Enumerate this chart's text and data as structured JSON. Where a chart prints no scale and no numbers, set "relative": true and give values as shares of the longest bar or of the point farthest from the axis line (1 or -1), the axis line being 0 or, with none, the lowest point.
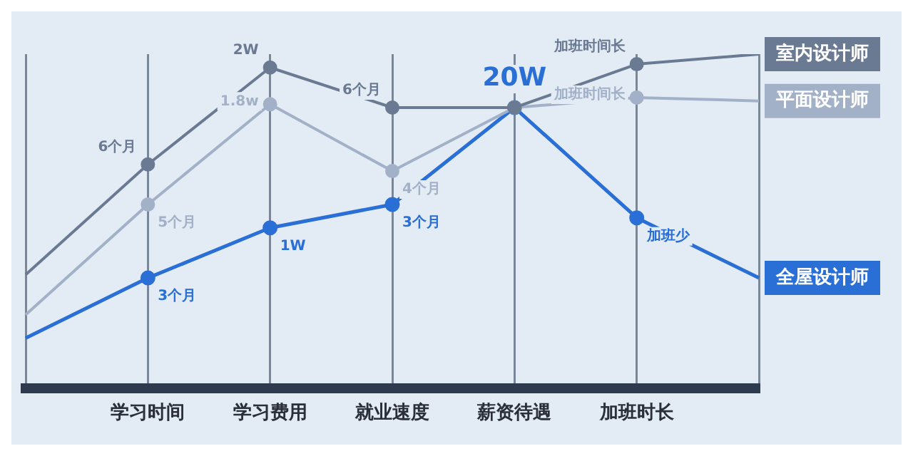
{
  "chart_data": {
    "type": "line",
    "relative": true,
    "categories": [
      null,
      "学习时间",
      "学习费用",
      "就业速度",
      "薪资待遇",
      "加班时长",
      null
    ],
    "series": [
      {
        "name": "室内设计师",
        "color": "#6b7a93",
        "values": [
          0.34,
          0.67,
          0.96,
          0.84,
          0.84,
          0.97,
          1
        ]
      },
      {
        "name": "平面设计师",
        "color": "#a3b1c8",
        "values": [
          0.22,
          0.55,
          0.85,
          0.65,
          0.84,
          0.87,
          0.86
        ]
      },
      {
        "name": "全屋设计师",
        "color": "#2a6fd6",
        "values": [
          0.15,
          0.33,
          0.48,
          0.55,
          0.84,
          0.51,
          0.33
        ]
      }
    ],
    "annotations": [
      {
        "text": "6个月",
        "x": "学习时间",
        "y": 0.67
      },
      {
        "text": "2W",
        "x": "学习费用",
        "y": 0.96
      },
      {
        "text": "6个月",
        "x": "就业速度",
        "y": 0.84
      },
      {
        "text": "加班时间长",
        "x": "加班时长",
        "y": 0.97
      },
      {
        "text": "5个月",
        "x": "学习时间",
        "y": 0.55
      },
      {
        "text": "1.8w",
        "x": "学习费用",
        "y": 0.85
      },
      {
        "text": "4个月",
        "x": "就业速度",
        "y": 0.65
      },
      {
        "text": "加班时间长",
        "x": "加班时长",
        "y": 0.87
      },
      {
        "text": "3个月",
        "x": "学习时间",
        "y": 0.33
      },
      {
        "text": "1W",
        "x": "学习费用",
        "y": 0.48
      },
      {
        "text": "3个月",
        "x": "就业速度",
        "y": 0.55
      },
      {
        "text": "20W",
        "x": "薪资待遇",
        "y": 0.84
      },
      {
        "text": "加班少",
        "x": "加班时长",
        "y": 0.51
      }
    ],
    "grid": "x",
    "marker": "circle",
    "line_style": "solid",
    "legend": false
  }
}
